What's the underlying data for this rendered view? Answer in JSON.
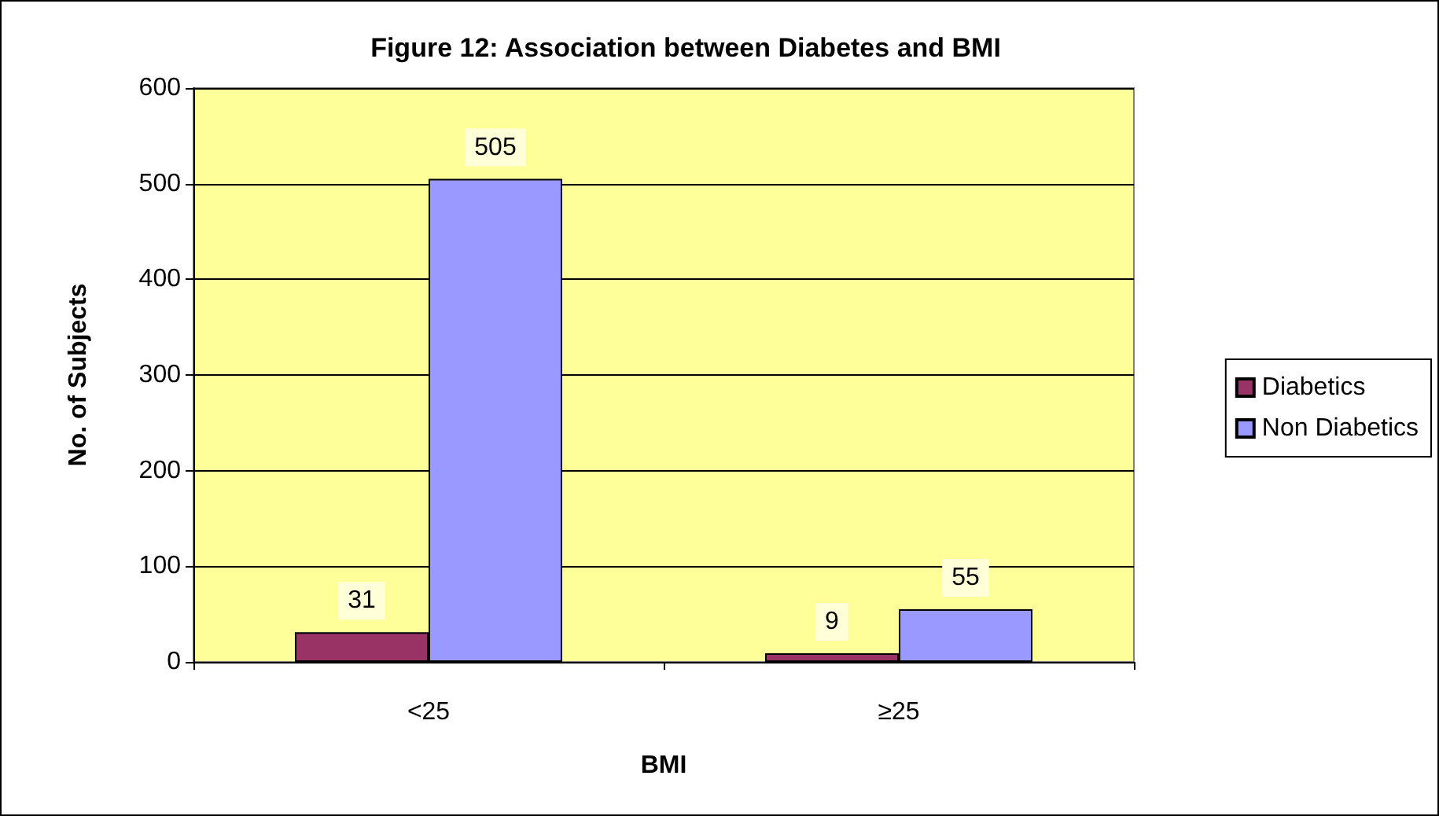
{
  "chart_data": {
    "type": "bar",
    "title": "Figure 12: Association between Diabetes and BMI",
    "xlabel": "BMI",
    "ylabel": "No. of Subjects",
    "categories": [
      "<25",
      "≥25"
    ],
    "series": [
      {
        "name": "Diabetics",
        "color": "#993366",
        "values": [
          31,
          9
        ]
      },
      {
        "name": "Non Diabetics",
        "color": "#9999ff",
        "values": [
          505,
          55
        ]
      }
    ],
    "ylim": [
      0,
      600
    ],
    "yticks": [
      0,
      100,
      200,
      300,
      400,
      500,
      600
    ],
    "grid": "y",
    "legend": "right",
    "data_labels": true
  }
}
